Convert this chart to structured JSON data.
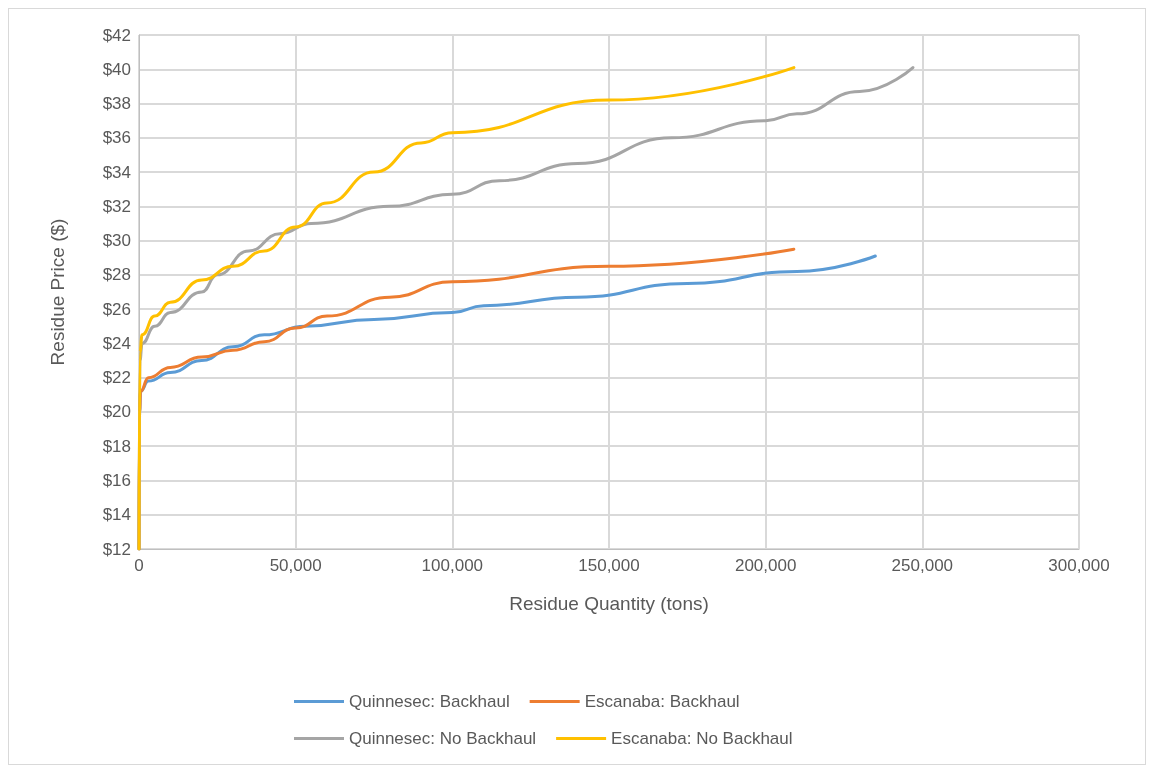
{
  "chart_data": {
    "type": "line",
    "xlabel": "Residue Quantity (tons)",
    "ylabel": "Residue Price ($)",
    "xlim": [
      0,
      300000
    ],
    "xticks": [
      {
        "value": 0,
        "label": "0"
      },
      {
        "value": 50000,
        "label": "50,000"
      },
      {
        "value": 100000,
        "label": "100,000"
      },
      {
        "value": 150000,
        "label": "150,000"
      },
      {
        "value": 200000,
        "label": "200,000"
      },
      {
        "value": 250000,
        "label": "250,000"
      },
      {
        "value": 300000,
        "label": "300,000"
      }
    ],
    "ylim": [
      12,
      42
    ],
    "yticks": [
      {
        "value": 12,
        "label": "$12"
      },
      {
        "value": 14,
        "label": "$14"
      },
      {
        "value": 16,
        "label": "$16"
      },
      {
        "value": 18,
        "label": "$18"
      },
      {
        "value": 20,
        "label": "$20"
      },
      {
        "value": 22,
        "label": "$22"
      },
      {
        "value": 24,
        "label": "$24"
      },
      {
        "value": 26,
        "label": "$26"
      },
      {
        "value": 28,
        "label": "$28"
      },
      {
        "value": 30,
        "label": "$30"
      },
      {
        "value": 32,
        "label": "$32"
      },
      {
        "value": 34,
        "label": "$34"
      },
      {
        "value": 36,
        "label": "$36"
      },
      {
        "value": 38,
        "label": "$38"
      },
      {
        "value": 40,
        "label": "$40"
      },
      {
        "value": 42,
        "label": "$42"
      }
    ],
    "grid": true,
    "legend": "bottom",
    "marker": "none",
    "line_style": "solid",
    "series": [
      {
        "name": "Quinnesec: Backhaul",
        "color": "#5b9bd5",
        "x": [
          0,
          200,
          500,
          3000,
          10000,
          20000,
          30000,
          40000,
          53000,
          75000,
          100000,
          110000,
          140000,
          175000,
          210000,
          235000
        ],
        "values": [
          12,
          20,
          21.2,
          21.8,
          22.3,
          23,
          23.8,
          24.5,
          25,
          25.4,
          25.8,
          26.2,
          26.7,
          27.5,
          28.2,
          29.1
        ]
      },
      {
        "name": "Escanaba: Backhaul",
        "color": "#ed7d31",
        "x": [
          0,
          200,
          500,
          3000,
          10000,
          20000,
          30000,
          40000,
          50000,
          60000,
          80000,
          100000,
          150000,
          209000
        ],
        "values": [
          12,
          20,
          21.2,
          22,
          22.6,
          23.2,
          23.6,
          24.1,
          24.9,
          25.6,
          26.7,
          27.6,
          28.5,
          29.5
        ]
      },
      {
        "name": "Quinnesec: No Backhaul",
        "color": "#a5a5a5",
        "x": [
          0,
          300,
          1000,
          5000,
          10000,
          20000,
          25000,
          35000,
          45000,
          55000,
          80000,
          100000,
          115000,
          140000,
          170000,
          200000,
          210000,
          230000,
          247000
        ],
        "values": [
          12,
          23,
          24,
          25,
          25.8,
          27,
          28,
          29.4,
          30.4,
          31,
          32,
          32.7,
          33.5,
          34.5,
          36,
          37,
          37.4,
          38.7,
          40.1
        ]
      },
      {
        "name": "Escanaba: No Backhaul",
        "color": "#ffc000",
        "x": [
          0,
          300,
          1000,
          5000,
          10000,
          20000,
          30000,
          40000,
          50000,
          60000,
          75000,
          90000,
          100000,
          150000,
          209000
        ],
        "values": [
          12,
          23.5,
          24.5,
          25.6,
          26.4,
          27.7,
          28.5,
          29.4,
          30.8,
          32.2,
          34,
          35.7,
          36.3,
          38.2,
          40.1
        ]
      }
    ]
  }
}
